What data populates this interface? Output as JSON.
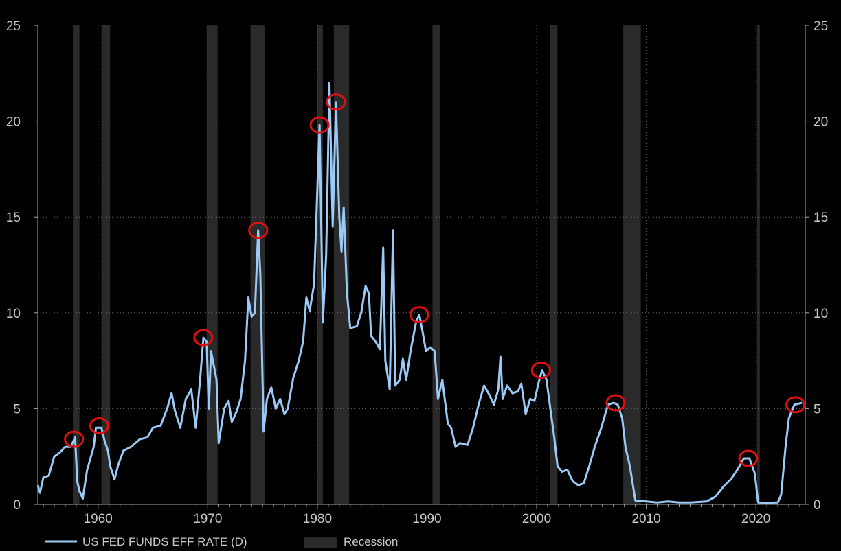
{
  "chart_data": {
    "type": "line",
    "title": "",
    "xlabel": "",
    "ylabel": "",
    "xlim": [
      1954.5,
      2024.5
    ],
    "ylim": [
      0,
      25
    ],
    "grid": true,
    "legend_position": "bottom-left",
    "x_ticks": [
      1960,
      1970,
      1980,
      1990,
      2000,
      2010,
      2020
    ],
    "y_ticks": [
      0,
      5,
      10,
      15,
      20,
      25
    ],
    "colors": {
      "series": "#9ccaf7",
      "recession": "#2a2a2a",
      "highlight": "#e01010",
      "grid": "#6a6a6a"
    },
    "legend": {
      "series_label": "US FED FUNDS EFF RATE (D)",
      "recession_label": "Recession"
    },
    "recessions": [
      [
        1957.7,
        1958.3
      ],
      [
        1960.3,
        1961.1
      ],
      [
        1969.9,
        1970.9
      ],
      [
        1973.9,
        1975.2
      ],
      [
        1980.0,
        1980.5
      ],
      [
        1981.5,
        1982.9
      ],
      [
        1990.5,
        1991.2
      ],
      [
        2001.2,
        2001.9
      ],
      [
        2007.9,
        2009.5
      ],
      [
        2020.1,
        2020.3
      ]
    ],
    "highlighted_peaks": [
      [
        1957.8,
        3.4
      ],
      [
        1960.1,
        4.1
      ],
      [
        1969.6,
        8.7
      ],
      [
        1974.6,
        14.3
      ],
      [
        1980.2,
        19.8
      ],
      [
        1981.7,
        21.0
      ],
      [
        1989.3,
        9.9
      ],
      [
        2000.4,
        7.0
      ],
      [
        2007.2,
        5.3
      ],
      [
        2019.3,
        2.4
      ],
      [
        2023.6,
        5.2
      ]
    ],
    "series": [
      {
        "name": "US FED FUNDS EFF RATE (D)",
        "points": [
          [
            1954.5,
            1.0
          ],
          [
            1954.7,
            0.6
          ],
          [
            1955,
            1.4
          ],
          [
            1955.5,
            1.5
          ],
          [
            1956,
            2.5
          ],
          [
            1956.5,
            2.7
          ],
          [
            1957,
            3.0
          ],
          [
            1957.5,
            3.0
          ],
          [
            1957.9,
            3.5
          ],
          [
            1958.1,
            1.2
          ],
          [
            1958.3,
            0.7
          ],
          [
            1958.6,
            0.3
          ],
          [
            1959,
            1.8
          ],
          [
            1959.3,
            2.4
          ],
          [
            1959.6,
            3.0
          ],
          [
            1959.8,
            4.0
          ],
          [
            1960.3,
            4.0
          ],
          [
            1960.6,
            3.3
          ],
          [
            1960.9,
            2.8
          ],
          [
            1961.1,
            2.0
          ],
          [
            1961.5,
            1.3
          ],
          [
            1961.8,
            2.0
          ],
          [
            1962.3,
            2.8
          ],
          [
            1963,
            3.0
          ],
          [
            1963.8,
            3.4
          ],
          [
            1964.5,
            3.5
          ],
          [
            1965,
            4.0
          ],
          [
            1965.7,
            4.1
          ],
          [
            1966.3,
            5.0
          ],
          [
            1966.7,
            5.8
          ],
          [
            1967,
            4.9
          ],
          [
            1967.5,
            4.0
          ],
          [
            1968,
            5.5
          ],
          [
            1968.5,
            6.0
          ],
          [
            1968.9,
            4.0
          ],
          [
            1969.3,
            6.5
          ],
          [
            1969.6,
            8.7
          ],
          [
            1969.9,
            8.5
          ],
          [
            1970.1,
            5.0
          ],
          [
            1970.3,
            8.0
          ],
          [
            1970.8,
            6.5
          ],
          [
            1971,
            3.2
          ],
          [
            1971.5,
            5.0
          ],
          [
            1971.9,
            5.4
          ],
          [
            1972.2,
            4.3
          ],
          [
            1972.6,
            4.8
          ],
          [
            1973,
            5.5
          ],
          [
            1973.4,
            7.5
          ],
          [
            1973.7,
            10.8
          ],
          [
            1974,
            9.8
          ],
          [
            1974.3,
            10.0
          ],
          [
            1974.6,
            14.3
          ],
          [
            1974.8,
            12.0
          ],
          [
            1975.1,
            3.8
          ],
          [
            1975.4,
            5.5
          ],
          [
            1975.8,
            6.1
          ],
          [
            1976.2,
            5.0
          ],
          [
            1976.6,
            5.5
          ],
          [
            1977,
            4.7
          ],
          [
            1977.3,
            5.0
          ],
          [
            1977.8,
            6.6
          ],
          [
            1978.3,
            7.5
          ],
          [
            1978.7,
            8.5
          ],
          [
            1979,
            10.8
          ],
          [
            1979.3,
            10.1
          ],
          [
            1979.7,
            11.5
          ],
          [
            1980.2,
            19.8
          ],
          [
            1980.5,
            9.5
          ],
          [
            1980.8,
            13.0
          ],
          [
            1981.1,
            22.0
          ],
          [
            1981.4,
            14.5
          ],
          [
            1981.7,
            21.0
          ],
          [
            1982.0,
            15.0
          ],
          [
            1982.2,
            13.2
          ],
          [
            1982.4,
            15.5
          ],
          [
            1982.7,
            11.0
          ],
          [
            1983,
            9.2
          ],
          [
            1983.6,
            9.3
          ],
          [
            1984,
            10.0
          ],
          [
            1984.4,
            11.4
          ],
          [
            1984.7,
            11.0
          ],
          [
            1984.9,
            8.8
          ],
          [
            1985.3,
            8.5
          ],
          [
            1985.7,
            8.1
          ],
          [
            1986,
            13.4
          ],
          [
            1986.2,
            7.5
          ],
          [
            1986.6,
            6.0
          ],
          [
            1986.9,
            14.3
          ],
          [
            1987.1,
            6.2
          ],
          [
            1987.5,
            6.5
          ],
          [
            1987.8,
            7.6
          ],
          [
            1988.1,
            6.5
          ],
          [
            1988.5,
            8.0
          ],
          [
            1989,
            9.5
          ],
          [
            1989.3,
            9.9
          ],
          [
            1989.6,
            9.0
          ],
          [
            1989.9,
            8.0
          ],
          [
            1990.3,
            8.2
          ],
          [
            1990.7,
            8.0
          ],
          [
            1991,
            5.5
          ],
          [
            1991.4,
            6.5
          ],
          [
            1991.9,
            4.2
          ],
          [
            1992.2,
            4.0
          ],
          [
            1992.6,
            3.0
          ],
          [
            1993,
            3.2
          ],
          [
            1993.7,
            3.1
          ],
          [
            1994.2,
            4.0
          ],
          [
            1994.7,
            5.2
          ],
          [
            1995.2,
            6.2
          ],
          [
            1995.7,
            5.7
          ],
          [
            1996.1,
            5.2
          ],
          [
            1996.5,
            6.0
          ],
          [
            1996.7,
            7.7
          ],
          [
            1996.9,
            5.5
          ],
          [
            1997.3,
            6.2
          ],
          [
            1997.8,
            5.8
          ],
          [
            1998.3,
            5.9
          ],
          [
            1998.6,
            6.3
          ],
          [
            1999,
            4.7
          ],
          [
            1999.4,
            5.5
          ],
          [
            1999.8,
            5.4
          ],
          [
            2000.2,
            6.4
          ],
          [
            2000.5,
            7.0
          ],
          [
            2000.9,
            6.5
          ],
          [
            2001.2,
            5.2
          ],
          [
            2001.6,
            3.5
          ],
          [
            2001.9,
            2.0
          ],
          [
            2002.3,
            1.7
          ],
          [
            2002.8,
            1.8
          ],
          [
            2003.3,
            1.2
          ],
          [
            2003.8,
            1.0
          ],
          [
            2004.3,
            1.1
          ],
          [
            2004.8,
            2.0
          ],
          [
            2005.3,
            3.0
          ],
          [
            2005.9,
            4.0
          ],
          [
            2006.5,
            5.2
          ],
          [
            2007,
            5.3
          ],
          [
            2007.4,
            5.2
          ],
          [
            2007.8,
            4.5
          ],
          [
            2008.1,
            3.0
          ],
          [
            2008.5,
            2.0
          ],
          [
            2009,
            0.2
          ],
          [
            2010,
            0.15
          ],
          [
            2011,
            0.1
          ],
          [
            2012,
            0.15
          ],
          [
            2013,
            0.1
          ],
          [
            2014,
            0.1
          ],
          [
            2015.5,
            0.15
          ],
          [
            2016.3,
            0.4
          ],
          [
            2017,
            0.9
          ],
          [
            2017.7,
            1.3
          ],
          [
            2018.3,
            1.8
          ],
          [
            2018.9,
            2.4
          ],
          [
            2019.4,
            2.4
          ],
          [
            2019.9,
            1.6
          ],
          [
            2020.2,
            0.1
          ],
          [
            2021,
            0.08
          ],
          [
            2022,
            0.1
          ],
          [
            2022.3,
            0.5
          ],
          [
            2022.7,
            3.0
          ],
          [
            2023,
            4.5
          ],
          [
            2023.5,
            5.2
          ],
          [
            2024.2,
            5.3
          ]
        ]
      }
    ]
  }
}
